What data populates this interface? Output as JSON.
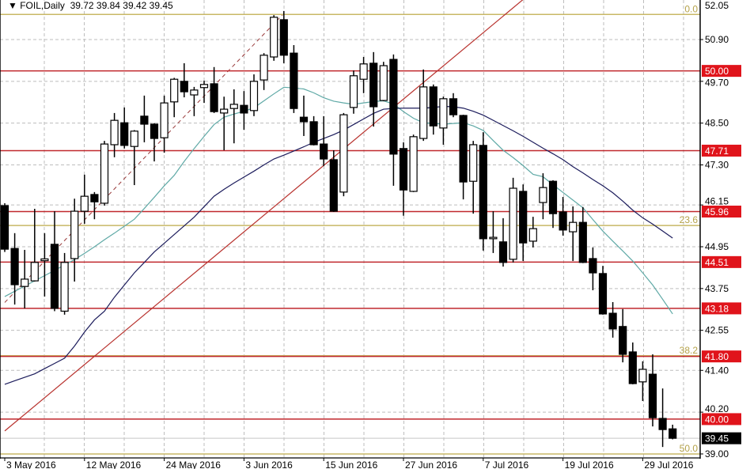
{
  "header": {
    "symbol_label": "▼ FOIL,Daily",
    "ohlc_text": "39.72 39.84 39.42 39.45"
  },
  "chart_data": {
    "type": "candlestick",
    "title": "FOIL,Daily",
    "ylim": [
      39.0,
      52.05
    ],
    "y_ticks": [
      52.05,
      50.9,
      49.7,
      48.5,
      47.3,
      46.15,
      44.95,
      43.75,
      42.55,
      41.4,
      40.2,
      39.0
    ],
    "x_tick_labels": [
      {
        "candle": 0,
        "label": "3 May 2016"
      },
      {
        "candle": 8,
        "label": "12 May 2016"
      },
      {
        "candle": 16,
        "label": "24 May 2016"
      },
      {
        "candle": 24,
        "label": "3 Jun 2016"
      },
      {
        "candle": 32,
        "label": "15 Jun 2016"
      },
      {
        "candle": 40,
        "label": "27 Jun 2016"
      },
      {
        "candle": 48,
        "label": "7 Jul 2016"
      },
      {
        "candle": 56,
        "label": "19 Jul 2016"
      },
      {
        "candle": 64,
        "label": "29 Jul 2016"
      }
    ],
    "grid": true,
    "candles": [
      [
        46.13,
        46.2,
        44.8,
        44.88
      ],
      [
        44.9,
        45.34,
        43.29,
        43.86
      ],
      [
        43.81,
        44.86,
        43.18,
        44.02
      ],
      [
        43.97,
        46.04,
        43.95,
        44.5
      ],
      [
        44.55,
        45.34,
        43.52,
        44.6
      ],
      [
        45.02,
        45.97,
        43.1,
        43.18
      ],
      [
        43.1,
        44.77,
        43.0,
        44.5
      ],
      [
        44.61,
        46.33,
        43.95,
        45.97
      ],
      [
        45.97,
        47.02,
        45.61,
        46.4
      ],
      [
        46.45,
        46.52,
        45.74,
        46.24
      ],
      [
        46.2,
        47.99,
        46.13,
        47.9
      ],
      [
        47.88,
        48.79,
        47.52,
        48.58
      ],
      [
        48.51,
        48.95,
        47.77,
        47.86
      ],
      [
        47.83,
        48.3,
        46.72,
        48.27
      ],
      [
        48.7,
        49.29,
        47.95,
        48.47
      ],
      [
        48.47,
        48.5,
        47.4,
        48.06
      ],
      [
        48.08,
        49.29,
        47.65,
        49.08
      ],
      [
        49.11,
        49.8,
        48.67,
        49.76
      ],
      [
        49.7,
        50.22,
        49.24,
        49.4
      ],
      [
        49.31,
        49.54,
        48.7,
        49.45
      ],
      [
        49.52,
        49.72,
        49.08,
        49.61
      ],
      [
        49.63,
        50.11,
        48.79,
        48.83
      ],
      [
        48.79,
        49.26,
        47.72,
        48.9
      ],
      [
        48.92,
        49.47,
        47.92,
        49.04
      ],
      [
        49.01,
        49.42,
        48.31,
        48.79
      ],
      [
        48.86,
        49.9,
        48.7,
        49.7
      ],
      [
        49.74,
        50.51,
        49.45,
        50.45
      ],
      [
        50.4,
        51.6,
        50.29,
        51.54
      ],
      [
        51.47,
        51.72,
        50.22,
        50.45
      ],
      [
        50.51,
        50.74,
        48.79,
        48.92
      ],
      [
        48.67,
        49.29,
        48.13,
        48.54
      ],
      [
        48.54,
        48.7,
        47.86,
        47.88
      ],
      [
        47.9,
        48.7,
        47.27,
        47.47
      ],
      [
        47.45,
        47.72,
        45.95,
        45.97
      ],
      [
        46.52,
        48.79,
        46.4,
        48.74
      ],
      [
        48.95,
        50.01,
        48.77,
        49.86
      ],
      [
        49.76,
        50.4,
        49.36,
        50.2
      ],
      [
        50.22,
        50.54,
        48.4,
        48.97
      ],
      [
        49.15,
        50.26,
        49.13,
        50.15
      ],
      [
        50.33,
        50.47,
        46.7,
        47.61
      ],
      [
        47.77,
        47.95,
        45.84,
        46.58
      ],
      [
        46.54,
        48.17,
        46.52,
        48.11
      ],
      [
        48.06,
        50.04,
        47.99,
        49.54
      ],
      [
        49.54,
        49.61,
        48.17,
        48.42
      ],
      [
        48.36,
        49.26,
        47.88,
        49.2
      ],
      [
        49.2,
        49.36,
        48.67,
        48.74
      ],
      [
        48.72,
        48.74,
        46.31,
        46.81
      ],
      [
        46.83,
        47.99,
        45.9,
        47.88
      ],
      [
        47.86,
        48.24,
        44.84,
        45.18
      ],
      [
        45.18,
        45.97,
        44.77,
        45.22
      ],
      [
        45.09,
        45.77,
        44.38,
        44.5
      ],
      [
        44.59,
        46.93,
        44.5,
        46.63
      ],
      [
        46.54,
        46.74,
        44.54,
        45.06
      ],
      [
        45.11,
        45.81,
        44.93,
        45.47
      ],
      [
        46.22,
        47.06,
        45.74,
        46.65
      ],
      [
        46.83,
        46.86,
        45.49,
        45.9
      ],
      [
        45.95,
        46.38,
        45.27,
        45.43
      ],
      [
        45.38,
        46.11,
        44.54,
        45.65
      ],
      [
        45.65,
        46.09,
        44.48,
        44.5
      ],
      [
        44.61,
        44.93,
        43.7,
        44.2
      ],
      [
        44.18,
        44.4,
        43.0,
        43.02
      ],
      [
        43.04,
        43.36,
        42.34,
        42.59
      ],
      [
        42.66,
        43.16,
        41.63,
        41.86
      ],
      [
        41.93,
        42.2,
        41.0,
        41.02
      ],
      [
        41.07,
        41.66,
        40.52,
        41.43
      ],
      [
        41.29,
        41.86,
        39.79,
        40.04
      ],
      [
        40.02,
        40.88,
        39.2,
        39.7
      ],
      [
        39.72,
        39.84,
        39.42,
        39.45
      ]
    ],
    "candle_format": [
      "open",
      "high",
      "low",
      "close"
    ],
    "moving_averages": [
      {
        "color": "#5fa9a6",
        "values": [
          43.52,
          43.67,
          43.82,
          43.97,
          44.12,
          44.27,
          44.43,
          44.58,
          44.76,
          44.95,
          45.15,
          45.34,
          45.54,
          45.74,
          46.05,
          46.37,
          46.7,
          47.0,
          47.4,
          47.77,
          48.12,
          48.46,
          48.67,
          48.76,
          48.84,
          48.94,
          49.14,
          49.34,
          49.53,
          49.51,
          49.48,
          49.37,
          49.23,
          49.13,
          49.08,
          49.04,
          49.08,
          49.12,
          49.14,
          49.05,
          48.83,
          48.64,
          48.51,
          48.49,
          48.47,
          48.49,
          48.51,
          48.42,
          48.29,
          48.0,
          47.72,
          47.51,
          47.28,
          47.03,
          46.96,
          46.73,
          46.51,
          46.29,
          46.07,
          45.73,
          45.4,
          45.11,
          44.83,
          44.54,
          44.2,
          43.85,
          43.44,
          43.02
        ]
      },
      {
        "color": "#1c1c5c",
        "values": [
          41.0,
          41.1,
          41.2,
          41.3,
          41.45,
          41.6,
          41.75,
          42.1,
          42.5,
          42.85,
          43.1,
          43.5,
          43.85,
          44.2,
          44.5,
          44.8,
          45.05,
          45.3,
          45.55,
          45.8,
          46.1,
          46.4,
          46.6,
          46.78,
          46.95,
          47.12,
          47.3,
          47.47,
          47.58,
          47.7,
          47.82,
          47.95,
          48.06,
          48.17,
          48.3,
          48.46,
          48.62,
          48.78,
          48.9,
          48.92,
          48.93,
          48.93,
          48.93,
          48.95,
          48.98,
          48.97,
          48.93,
          48.84,
          48.73,
          48.58,
          48.43,
          48.28,
          48.12,
          47.95,
          47.78,
          47.62,
          47.45,
          47.25,
          47.07,
          46.88,
          46.7,
          46.5,
          46.26,
          46.0,
          45.78,
          45.6,
          45.4,
          45.2
        ]
      }
    ],
    "horizontal_levels": [
      {
        "price": 50.0,
        "label": "50.00"
      },
      {
        "price": 47.71,
        "label": "47.71"
      },
      {
        "price": 45.96,
        "label": "45.96"
      },
      {
        "price": 44.51,
        "label": "44.51"
      },
      {
        "price": 43.18,
        "label": "43.18"
      },
      {
        "price": 41.8,
        "label": "41.80"
      },
      {
        "price": 40.0,
        "label": "40.00"
      }
    ],
    "level_color": "#c0282d",
    "fibonacci": {
      "color": "#c8b866",
      "levels": [
        {
          "label": "0.0",
          "price": 51.62
        },
        {
          "label": "23.6",
          "price": 45.56
        },
        {
          "label": "38.2",
          "price": 41.82
        },
        {
          "label": "50.0",
          "price": 39.0
        }
      ],
      "base_line": {
        "from": {
          "candle": 0,
          "price": 43.35
        },
        "to": {
          "candle": 28,
          "price": 51.65
        }
      }
    },
    "trendline": {
      "color": "#b8322e",
      "from": {
        "candle": 0,
        "price": 39.66
      },
      "to": {
        "candle": 52,
        "price": 52.05
      }
    },
    "last_price": {
      "price": 39.45,
      "label": "39.45"
    }
  }
}
